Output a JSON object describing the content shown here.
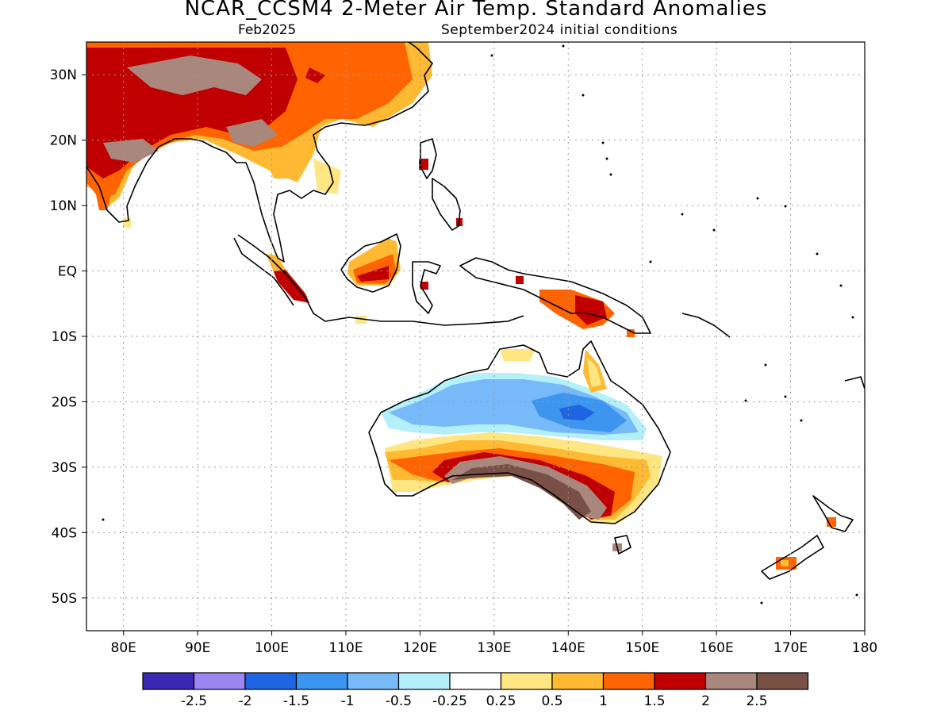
{
  "title": "NCAR_CCSM4 2-Meter Air Temp. Standard Anomalies",
  "valid_month": "Feb2025",
  "init_conditions": "September2024 initial conditions",
  "map": {
    "lon_range": [
      75,
      180
    ],
    "lat_range": [
      -55,
      35
    ],
    "lat_ticks": [
      {
        "v": 30,
        "label": "30N"
      },
      {
        "v": 20,
        "label": "20N"
      },
      {
        "v": 10,
        "label": "10N"
      },
      {
        "v": 0,
        "label": "EQ"
      },
      {
        "v": -10,
        "label": "10S"
      },
      {
        "v": -20,
        "label": "20S"
      },
      {
        "v": -30,
        "label": "30S"
      },
      {
        "v": -40,
        "label": "40S"
      },
      {
        "v": -50,
        "label": "50S"
      }
    ],
    "lon_ticks": [
      {
        "v": 80,
        "label": "80E"
      },
      {
        "v": 90,
        "label": "90E"
      },
      {
        "v": 100,
        "label": "100E"
      },
      {
        "v": 110,
        "label": "110E"
      },
      {
        "v": 120,
        "label": "120E"
      },
      {
        "v": 130,
        "label": "130E"
      },
      {
        "v": 140,
        "label": "140E"
      },
      {
        "v": 150,
        "label": "150E"
      },
      {
        "v": 160,
        "label": "160E"
      },
      {
        "v": 170,
        "label": "170E"
      },
      {
        "v": 180,
        "label": "180"
      }
    ],
    "grid": "dotted"
  },
  "colorbar": {
    "colors": [
      "#3c28b4",
      "#9b86f2",
      "#1f64e0",
      "#3c96f0",
      "#78b9fa",
      "#b4f0fa",
      "#ffffff",
      "#ffe682",
      "#ffb932",
      "#ff6400",
      "#c00000",
      "#aa877c",
      "#785046"
    ],
    "labels": [
      "-2.5",
      "-2",
      "-1.5",
      "-1",
      "-0.5",
      "-0.25",
      "0.25",
      "0.5",
      "1",
      "1.5",
      "2",
      "2.5"
    ]
  }
}
